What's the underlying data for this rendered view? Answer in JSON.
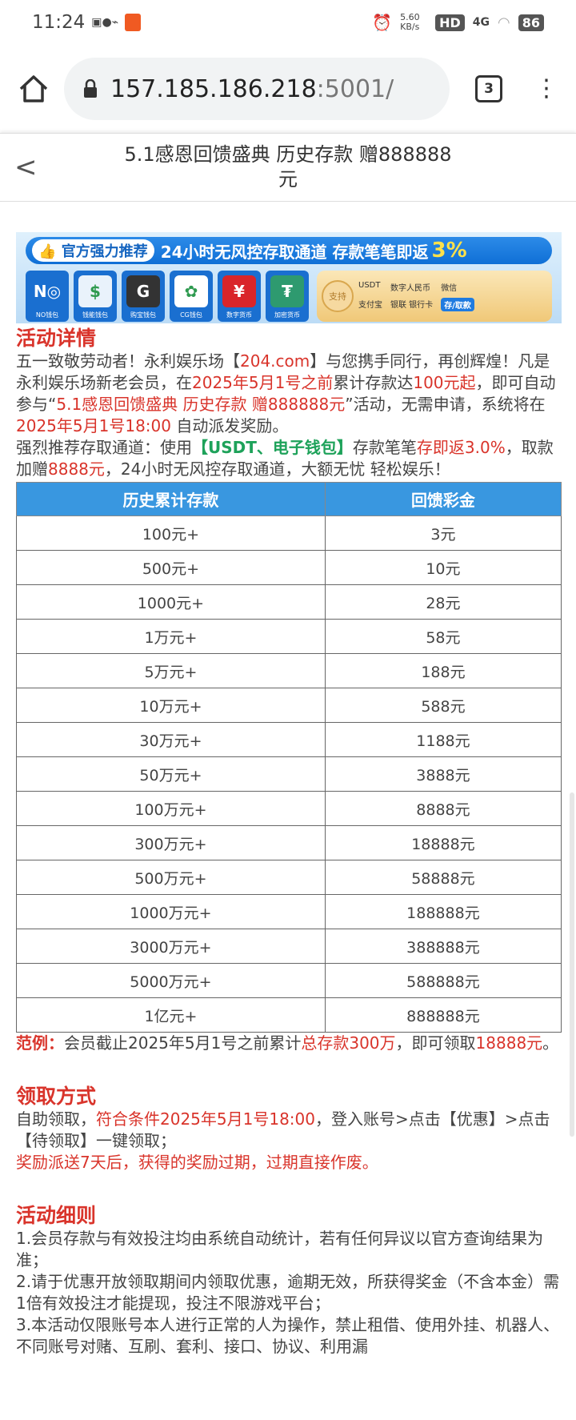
{
  "status_bar": {
    "time": "11:24",
    "net_speed": "5.60 KB/s",
    "network": "4G",
    "hd": "HD",
    "battery": "86"
  },
  "browser": {
    "url_host": "157.185.186.218",
    "url_port": ":5001/",
    "tab_count": "3"
  },
  "page": {
    "title": "5.1感恩回馈盛典 历史存款 赠888888元"
  },
  "banner": {
    "tag": "官方强力推荐",
    "headline": "24小时无风控存取通道 存款笔笔即返",
    "percent": "3%",
    "wallets": [
      {
        "icon": "N◎",
        "label": "NO钱包",
        "color": "#1a6fd0"
      },
      {
        "icon": "$",
        "label": "钱能钱包",
        "color": "#e9f2fb"
      },
      {
        "icon": "G",
        "label": "购宝钱包",
        "color": "#333333"
      },
      {
        "icon": "✿",
        "label": "CG钱包",
        "color": "#ffffff"
      },
      {
        "icon": "¥",
        "label": "数字货币",
        "color": "#d9252a"
      },
      {
        "icon": "₮",
        "label": "加密货币",
        "color": "#2e9a6f"
      }
    ],
    "support_seal": "支持",
    "support_items": [
      "USDT",
      "数字人民币",
      "微信",
      "支付宝",
      "银联 银行卡"
    ],
    "support_button": "存/取款"
  },
  "details": {
    "heading": "活动详情",
    "p1": [
      "五一致敬劳动者！永利娱乐场【",
      "204.com",
      "】与您携手同行，再创辉煌！凡是永利娱乐场新老会员，在",
      "2025年5月1号之前",
      "累计存款达",
      "100元起",
      "，即可自动参与“",
      "5.1感恩回馈盛典 历史存款 赠888888元",
      "”活动，无需申请，系统将在",
      "2025年5月1号18:00",
      "自动派发奖励。"
    ],
    "p2": [
      "强烈推荐存取通道：使用",
      "【USDT、电子钱包】",
      "存款笔笔",
      "存即返3.0%",
      "，取款加赠",
      "8888元",
      "，24小时无风控存取通道，大额无忧 轻松娱乐！"
    ]
  },
  "table": {
    "headers": [
      "历史累计存款",
      "回馈彩金"
    ],
    "rows": [
      [
        "100元+",
        "3元"
      ],
      [
        "500元+",
        "10元"
      ],
      [
        "1000元+",
        "28元"
      ],
      [
        "1万元+",
        "58元"
      ],
      [
        "5万元+",
        "188元"
      ],
      [
        "10万元+",
        "588元"
      ],
      [
        "30万元+",
        "1188元"
      ],
      [
        "50万元+",
        "3888元"
      ],
      [
        "100万元+",
        "8888元"
      ],
      [
        "300万元+",
        "18888元"
      ],
      [
        "500万元+",
        "58888元"
      ],
      [
        "1000万元+",
        "188888元"
      ],
      [
        "3000万元+",
        "388888元"
      ],
      [
        "5000万元+",
        "588888元"
      ],
      [
        "1亿元+",
        "888888元"
      ]
    ]
  },
  "example": [
    "范例：",
    "会员截止2025年5月1号之前累计",
    "总存款300万",
    "，即可领取",
    "18888元",
    "。"
  ],
  "claim": {
    "heading": "领取方式",
    "p1": [
      "自助领取，",
      "符合条件2025年5月1号18:00",
      "，登入账号>点击【优惠】>点击【待领取】一键领取；"
    ],
    "p2": "奖励派送7天后，获得的奖励过期，过期直接作废。"
  },
  "rules": {
    "heading": "活动细则",
    "items": [
      "1.会员存款与有效投注均由系统自动统计，若有任何异议以官方查询结果为准；",
      "2.请于优惠开放领取期间内领取优惠，逾期无效，所获得奖金（不含本金）需1倍有效投注才能提现，投注不限游戏平台；",
      "3.本活动仅限账号本人进行正常的人为操作，禁止租借、使用外挂、机器人、不同账号对赌、互刷、套利、接口、协议、利用漏"
    ]
  },
  "colors": {
    "accent_red": "#d9342b",
    "table_header": "#3997e0",
    "green": "#1ea25a"
  }
}
